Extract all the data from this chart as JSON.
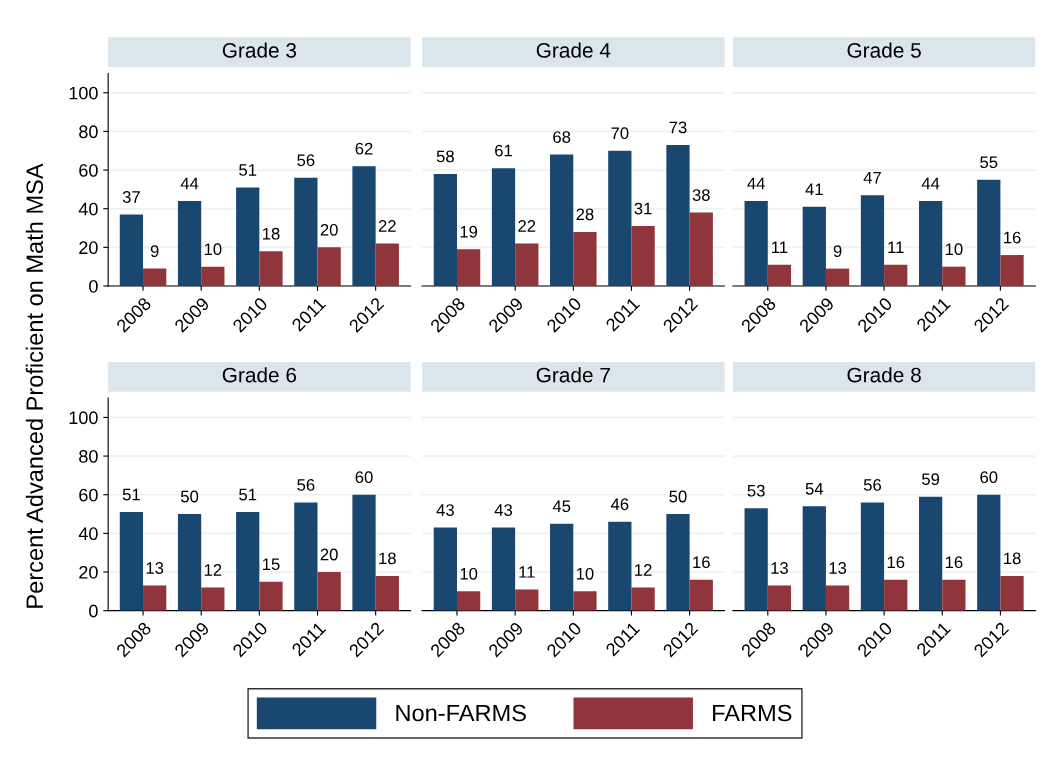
{
  "chart_data": [
    {
      "type": "bar",
      "title": "Grade 3",
      "ylabel": "Percent Advanced Proficient on Math MSA",
      "categories": [
        "2008",
        "2009",
        "2010",
        "2011",
        "2012"
      ],
      "series": [
        {
          "name": "Non-FARMS",
          "color": "#1a476f",
          "values": [
            37,
            44,
            51,
            56,
            62
          ]
        },
        {
          "name": "FARMS",
          "color": "#90353b",
          "values": [
            9,
            10,
            18,
            20,
            22
          ]
        }
      ],
      "ylim": [
        0,
        110
      ],
      "yticks": [
        0,
        20,
        40,
        60,
        80,
        100
      ],
      "grid": "y",
      "data_labels": true,
      "legend": "bottom"
    },
    {
      "type": "bar",
      "title": "Grade 4",
      "categories": [
        "2008",
        "2009",
        "2010",
        "2011",
        "2012"
      ],
      "series": [
        {
          "color": "#1a476f",
          "values": [
            58,
            61,
            68,
            70,
            73
          ]
        },
        {
          "color": "#90353b",
          "values": [
            19,
            22,
            28,
            31,
            38
          ]
        }
      ],
      "yticks": [
        0,
        20,
        40,
        60,
        80,
        100
      ],
      "grid": "y",
      "data_labels": true,
      "tick_labels": "x"
    },
    {
      "type": "bar",
      "title": "Grade 5",
      "categories": [
        "2008",
        "2009",
        "2010",
        "2011",
        "2012"
      ],
      "series": [
        {
          "color": "#1a476f",
          "values": [
            44,
            41,
            47,
            44,
            55
          ]
        },
        {
          "color": "#90353b",
          "values": [
            11,
            9,
            11,
            10,
            16
          ]
        }
      ],
      "yticks": [
        0,
        20,
        40,
        60,
        80,
        100
      ],
      "grid": "y",
      "data_labels": true,
      "tick_labels": "x"
    },
    {
      "type": "bar",
      "title": "Grade 6",
      "categories": [
        "2008",
        "2009",
        "2010",
        "2011",
        "2012"
      ],
      "series": [
        {
          "color": "#1a476f",
          "values": [
            51,
            50,
            51,
            56,
            60
          ]
        },
        {
          "color": "#90353b",
          "values": [
            13,
            12,
            15,
            20,
            18
          ]
        }
      ],
      "ylim": [
        0,
        110
      ],
      "yticks": [
        0,
        20,
        40,
        60,
        80,
        100
      ],
      "grid": "y",
      "data_labels": true
    },
    {
      "type": "bar",
      "title": "Grade 7",
      "categories": [
        "2008",
        "2009",
        "2010",
        "2011",
        "2012"
      ],
      "series": [
        {
          "color": "#1a476f",
          "values": [
            43,
            43,
            45,
            46,
            50
          ]
        },
        {
          "color": "#90353b",
          "values": [
            10,
            11,
            10,
            12,
            16
          ]
        }
      ],
      "yticks": [
        0,
        20,
        40,
        60,
        80,
        100
      ],
      "grid": "y",
      "data_labels": true,
      "tick_labels": "x"
    },
    {
      "type": "bar",
      "title": "Grade 8",
      "categories": [
        "2008",
        "2009",
        "2010",
        "2011",
        "2012"
      ],
      "series": [
        {
          "color": "#1a476f",
          "values": [
            53,
            54,
            56,
            59,
            60
          ]
        },
        {
          "color": "#90353b",
          "values": [
            13,
            13,
            16,
            16,
            18
          ]
        }
      ],
      "yticks": [
        0,
        20,
        40,
        60,
        80,
        100
      ],
      "grid": "y",
      "data_labels": true,
      "tick_labels": "x"
    }
  ]
}
